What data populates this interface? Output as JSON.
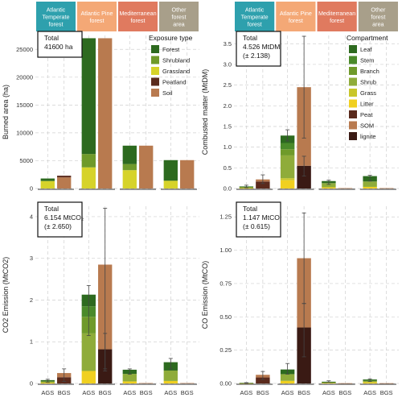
{
  "colors": {
    "forest_types": [
      "#2ea0ad",
      "#f4a876",
      "#e07a5f",
      "#a89f8a"
    ],
    "stack": {
      "Forest": "#2d6a1f",
      "Shrubland": "#6f9a2a",
      "Grassland": "#d6d32a",
      "Peatland": "#5a2a1c",
      "Soil": "#b87a4f",
      "Leaf": "#2d6a1f",
      "Stem": "#4a8a2a",
      "Branch": "#6f9a2a",
      "Shrub": "#8fac3a",
      "Grass": "#c8c62a",
      "Litter": "#f0d020",
      "Peat": "#5a2a1c",
      "SOM": "#b87a4f",
      "lignite": "#3a1a14"
    }
  },
  "strips": [
    {
      "lines": [
        "Atlantic",
        "Temperate",
        "forest"
      ]
    },
    {
      "lines": [
        "Atlantic Pine",
        "forest"
      ]
    },
    {
      "lines": [
        "Mediterranean",
        "forest"
      ]
    },
    {
      "lines": [
        "Other",
        "forest",
        "area"
      ]
    }
  ],
  "x_ticks": [
    "AGS",
    "BGS"
  ],
  "chart_data": [
    {
      "type": "bar",
      "ylabel": "Burned area (ha)",
      "ylim": [
        0,
        27500
      ],
      "yticks": [
        0,
        5000,
        10000,
        15000,
        20000,
        25000
      ],
      "ytick_labels": [
        "0",
        "5000",
        "10000",
        "15000",
        "20000",
        "25000"
      ],
      "total_lines": [
        "Total",
        "41600 ha"
      ],
      "legend_title": "Exposure type",
      "legend": [
        "Forest",
        "Shrubland",
        "Grassland",
        "Peatland",
        "Soil"
      ],
      "groups": [
        {
          "AGS": [
            {
              "k": "Grassland",
              "v": 1300
            },
            {
              "k": "Shrubland",
              "v": 100
            },
            {
              "k": "Forest",
              "v": 400
            }
          ],
          "BGS": [
            {
              "k": "Soil",
              "v": 2000
            },
            {
              "k": "Peatland",
              "v": 300
            }
          ]
        },
        {
          "AGS": [
            {
              "k": "Grassland",
              "v": 3800
            },
            {
              "k": "Shrubland",
              "v": 2400
            },
            {
              "k": "Forest",
              "v": 20800
            }
          ],
          "BGS": [
            {
              "k": "Soil",
              "v": 27000
            }
          ]
        },
        {
          "AGS": [
            {
              "k": "Grassland",
              "v": 3300
            },
            {
              "k": "Shrubland",
              "v": 1100
            },
            {
              "k": "Forest",
              "v": 3300
            }
          ],
          "BGS": [
            {
              "k": "Soil",
              "v": 7700
            }
          ]
        },
        {
          "AGS": [
            {
              "k": "Grassland",
              "v": 1400
            },
            {
              "k": "Forest",
              "v": 3700
            }
          ],
          "BGS": [
            {
              "k": "Soil",
              "v": 5100
            }
          ]
        }
      ]
    },
    {
      "type": "bar",
      "ylabel": "Combusted matter (MtDM)",
      "ylim": [
        0,
        3.7
      ],
      "yticks": [
        0,
        0.5,
        1.0,
        1.5,
        2.0,
        2.5,
        3.0,
        3.5
      ],
      "ytick_labels": [
        "0.0",
        "0.5",
        "1.0",
        "1.5",
        "2.0",
        "2.5",
        "3.0",
        "3.5"
      ],
      "total_lines": [
        "Total",
        "4.526 MtDM",
        "(± 2.138)"
      ],
      "legend_title": "Compartment",
      "legend": [
        "Leaf",
        "Stem",
        "Branch",
        "Shrub",
        "Grass",
        "Litter",
        "Peat",
        "SOM",
        "lignite"
      ],
      "groups": [
        {
          "AGS": [
            {
              "k": "Litter",
              "v": 0.01
            },
            {
              "k": "Shrub",
              "v": 0.02
            },
            {
              "k": "Leaf",
              "v": 0.02
            }
          ],
          "BGS": [
            {
              "k": "Peat",
              "v": 0.17
            },
            {
              "k": "SOM",
              "v": 0.05
            }
          ],
          "err_AGS": [
            0.02,
            0.08
          ],
          "err_BGS": [
            0.12,
            0.33
          ]
        },
        {
          "AGS": [
            {
              "k": "Litter",
              "v": 0.2
            },
            {
              "k": "Grass",
              "v": 0.05
            },
            {
              "k": "Shrub",
              "v": 0.55
            },
            {
              "k": "Branch",
              "v": 0.15
            },
            {
              "k": "Stem",
              "v": 0.15
            },
            {
              "k": "Leaf",
              "v": 0.18
            }
          ],
          "BGS": [
            {
              "k": "lignite",
              "v": 0.55
            },
            {
              "k": "SOM",
              "v": 1.9
            }
          ],
          "err_AGS": [
            1.15,
            1.42
          ],
          "err_BGS": [
            1.22,
            3.68
          ],
          "err_BGS2": [
            0.3,
            0.78
          ]
        },
        {
          "AGS": [
            {
              "k": "Litter",
              "v": 0.03
            },
            {
              "k": "Shrub",
              "v": 0.1
            },
            {
              "k": "Leaf",
              "v": 0.05
            }
          ],
          "BGS": [
            {
              "k": "SOM",
              "v": 0.01
            }
          ],
          "err_AGS": [
            0.1,
            0.2
          ]
        },
        {
          "AGS": [
            {
              "k": "Litter",
              "v": 0.04
            },
            {
              "k": "Shrub",
              "v": 0.13
            },
            {
              "k": "Leaf",
              "v": 0.13
            }
          ],
          "BGS": [
            {
              "k": "SOM",
              "v": 0.01
            }
          ],
          "err_AGS": [
            0.18,
            0.32
          ]
        }
      ]
    },
    {
      "type": "bar",
      "ylabel": "CO2 Emission (MtCO2)",
      "ylim": [
        0,
        4.25
      ],
      "yticks": [
        0,
        1,
        2,
        3,
        4
      ],
      "ytick_labels": [
        "0",
        "1",
        "2",
        "3",
        "4"
      ],
      "total_lines": [
        "Total",
        "6.154 MtCO₂",
        "(± 2.650)"
      ],
      "groups": [
        {
          "AGS": [
            {
              "k": "Litter",
              "v": 0.02
            },
            {
              "k": "Shrub",
              "v": 0.03
            },
            {
              "k": "Leaf",
              "v": 0.03
            }
          ],
          "BGS": [
            {
              "k": "Peat",
              "v": 0.15
            },
            {
              "k": "SOM",
              "v": 0.1
            }
          ],
          "err_AGS": [
            0.03,
            0.1
          ],
          "err_BGS": [
            0.05,
            0.35
          ]
        },
        {
          "AGS": [
            {
              "k": "Litter",
              "v": 0.3
            },
            {
              "k": "Shrub",
              "v": 0.9
            },
            {
              "k": "Branch",
              "v": 0.4
            },
            {
              "k": "Stem",
              "v": 0.25
            },
            {
              "k": "Leaf",
              "v": 0.28
            }
          ],
          "BGS": [
            {
              "k": "lignite",
              "v": 0.82
            },
            {
              "k": "SOM",
              "v": 2.03
            }
          ],
          "err_AGS": [
            1.15,
            2.35
          ],
          "err_BGS": [
            0.35,
            4.2
          ],
          "err_BGS2": [
            0.3,
            1.2
          ]
        },
        {
          "AGS": [
            {
              "k": "Litter",
              "v": 0.05
            },
            {
              "k": "Shrub",
              "v": 0.18
            },
            {
              "k": "Leaf",
              "v": 0.1
            }
          ],
          "BGS": [
            {
              "k": "SOM",
              "v": 0.01
            }
          ],
          "err_AGS": [
            0.22,
            0.35
          ]
        },
        {
          "AGS": [
            {
              "k": "Litter",
              "v": 0.06
            },
            {
              "k": "Shrub",
              "v": 0.25
            },
            {
              "k": "Leaf",
              "v": 0.2
            }
          ],
          "BGS": [
            {
              "k": "SOM",
              "v": 0.01
            }
          ],
          "err_AGS": [
            0.35,
            0.6
          ]
        }
      ]
    },
    {
      "type": "bar",
      "ylabel": "CO Emission (MtCO)",
      "ylim": [
        0,
        1.33
      ],
      "yticks": [
        0,
        0.25,
        0.5,
        0.75,
        1.0,
        1.25
      ],
      "ytick_labels": [
        "0.00",
        "0.25",
        "0.50",
        "0.75",
        "1.00",
        "1.25"
      ],
      "total_lines": [
        "Total",
        "1.147 MtCO",
        "(± 0.615)"
      ],
      "groups": [
        {
          "AGS": [
            {
              "k": "Litter",
              "v": 0.002
            },
            {
              "k": "Leaf",
              "v": 0.003
            }
          ],
          "BGS": [
            {
              "k": "Peat",
              "v": 0.045
            },
            {
              "k": "SOM",
              "v": 0.02
            }
          ],
          "err_AGS": [
            0.002,
            0.006
          ],
          "err_BGS": [
            0.03,
            0.09
          ]
        },
        {
          "AGS": [
            {
              "k": "Litter",
              "v": 0.02
            },
            {
              "k": "Shrub",
              "v": 0.05
            },
            {
              "k": "Leaf",
              "v": 0.035
            }
          ],
          "BGS": [
            {
              "k": "lignite",
              "v": 0.42
            },
            {
              "k": "SOM",
              "v": 0.52
            }
          ],
          "err_AGS": [
            0.07,
            0.15
          ],
          "err_BGS": [
            0.6,
            1.28
          ],
          "err_BGS2": [
            0.2,
            0.6
          ]
        },
        {
          "AGS": [
            {
              "k": "Litter",
              "v": 0.005
            },
            {
              "k": "Leaf",
              "v": 0.008
            }
          ],
          "BGS": [
            {
              "k": "SOM",
              "v": 0.002
            }
          ],
          "err_AGS": [
            0.01,
            0.02
          ]
        },
        {
          "AGS": [
            {
              "k": "Litter",
              "v": 0.01
            },
            {
              "k": "Shrub",
              "v": 0.01
            },
            {
              "k": "Leaf",
              "v": 0.01
            }
          ],
          "BGS": [
            {
              "k": "SOM",
              "v": 0.002
            }
          ],
          "err_AGS": [
            0.015,
            0.035
          ]
        }
      ]
    }
  ]
}
